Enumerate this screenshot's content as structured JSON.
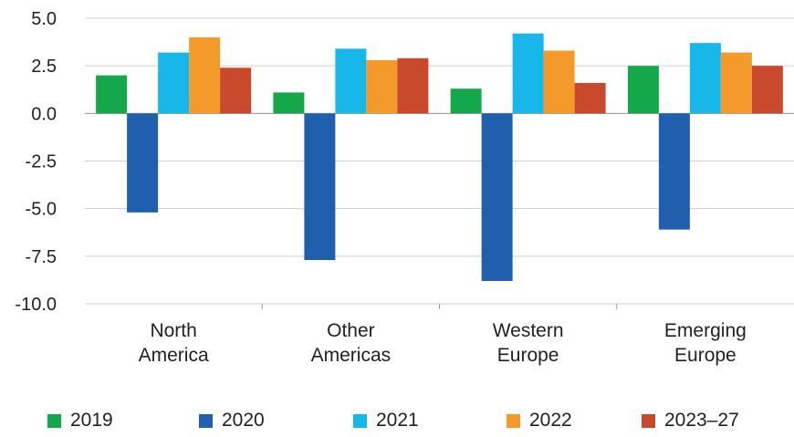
{
  "chart_data": {
    "type": "bar",
    "categories": [
      [
        "North",
        "America"
      ],
      [
        "Other",
        "Americas"
      ],
      [
        "Western",
        "Europe"
      ],
      [
        "Emerging",
        "Europe"
      ]
    ],
    "series": [
      {
        "name": "2019",
        "color": "#14a84a",
        "values": [
          2.0,
          1.1,
          1.3,
          2.5
        ]
      },
      {
        "name": "2020",
        "color": "#1f5fae",
        "values": [
          -5.2,
          -7.7,
          -8.8,
          -6.1
        ]
      },
      {
        "name": "2021",
        "color": "#18b7ea",
        "values": [
          3.2,
          3.4,
          4.2,
          3.7
        ]
      },
      {
        "name": "2022",
        "color": "#f39a2b",
        "values": [
          4.0,
          2.8,
          3.3,
          3.2
        ]
      },
      {
        "name": "2023–27",
        "color": "#c8492c",
        "values": [
          2.4,
          2.9,
          1.6,
          2.5
        ]
      }
    ],
    "yticks": [
      "5.0",
      "2.5",
      "0.0",
      "-2.5",
      "-5.0",
      "-7.5",
      "-10.0"
    ],
    "ylim": [
      -10,
      5
    ],
    "grid": true,
    "legend_position": "bottom",
    "title": "",
    "xlabel": "",
    "ylabel": ""
  }
}
